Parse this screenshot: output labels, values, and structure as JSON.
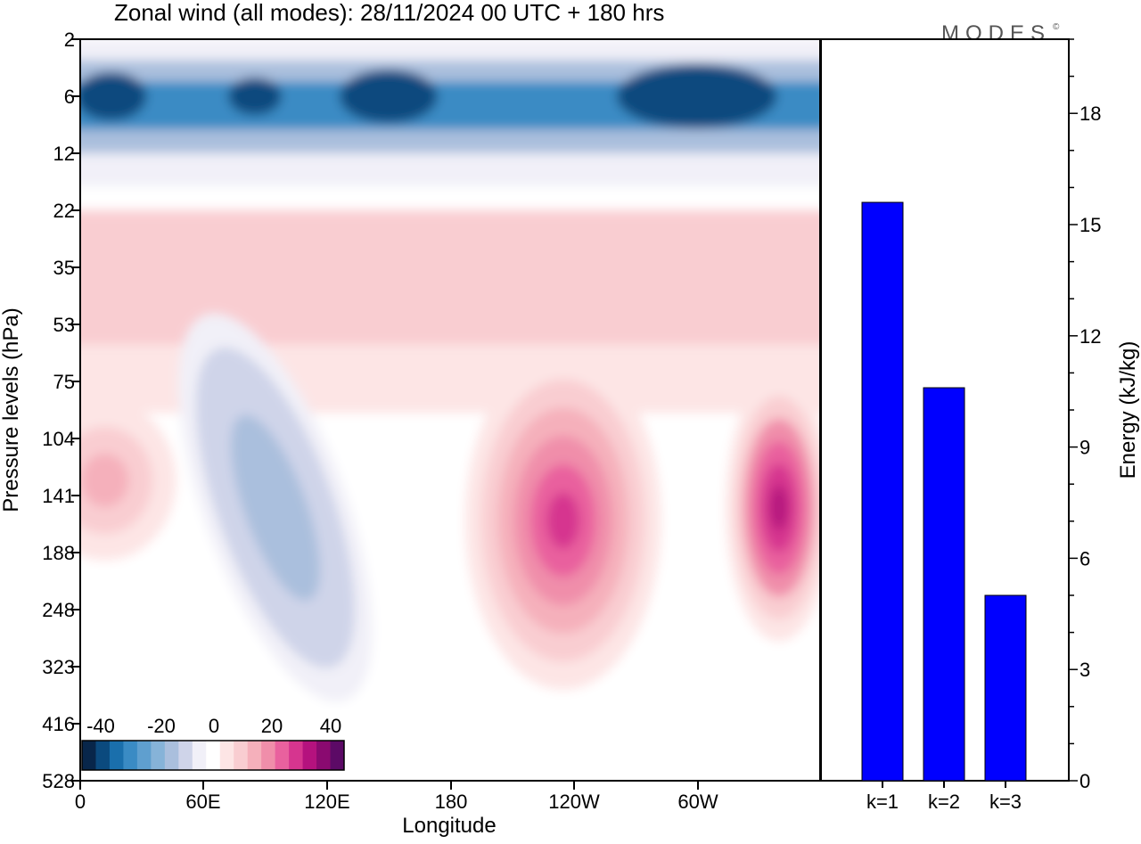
{
  "title": "Zonal wind (all modes):  28/11/2024  00 UTC  + 180 hrs",
  "logo": "MODES",
  "logo_mark": "©",
  "chart_data": [
    {
      "type": "heatmap",
      "xlabel": "Longitude",
      "ylabel": "Pressure levels (hPa)",
      "x_ticks": [
        "0",
        "60E",
        "120E",
        "180",
        "120W",
        "60W"
      ],
      "y_ticks": [
        "2",
        "6",
        "12",
        "22",
        "35",
        "53",
        "75",
        "104",
        "141",
        "188",
        "248",
        "323",
        "416",
        "528"
      ],
      "colorbar": {
        "tick_labels": [
          "-40",
          "-20",
          "0",
          "20",
          "40"
        ],
        "colors": [
          "#08264a",
          "#0b4a7e",
          "#1a6fac",
          "#3a8bc4",
          "#5f9fcf",
          "#86b3d8",
          "#aabfdd",
          "#cfd4e9",
          "#f1f0f8",
          "#ffffff",
          "#fde5e5",
          "#f9cdd1",
          "#f5b0bb",
          "#f08eaa",
          "#e9619e",
          "#d6358f",
          "#b5127e",
          "#8a0a70",
          "#5c0a66"
        ]
      },
      "features": [
        {
          "label": "easterly band",
          "pressure_hPa": [
            4,
            12
          ],
          "value": -30
        },
        {
          "label": "westerly jet",
          "longitude_deg": 235,
          "pressure_hPa": [
            104,
            248
          ],
          "value": 25
        },
        {
          "label": "westerly jet",
          "longitude_deg": 340,
          "pressure_hPa": [
            104,
            248
          ],
          "value": 35
        },
        {
          "label": "easterly tongue",
          "longitude_deg": [
            60,
            125
          ],
          "pressure_hPa": [
            75,
            248
          ],
          "value": -15
        }
      ]
    },
    {
      "type": "bar",
      "ylabel": "Energy (kJ/kg)",
      "categories": [
        "k=1",
        "k=2",
        "k=3"
      ],
      "values": [
        15.6,
        10.6,
        5.0
      ],
      "ylim": [
        0,
        20
      ],
      "y_ticks": [
        "0",
        "3",
        "6",
        "9",
        "12",
        "15",
        "18"
      ],
      "bar_color": "#0000ff"
    }
  ]
}
